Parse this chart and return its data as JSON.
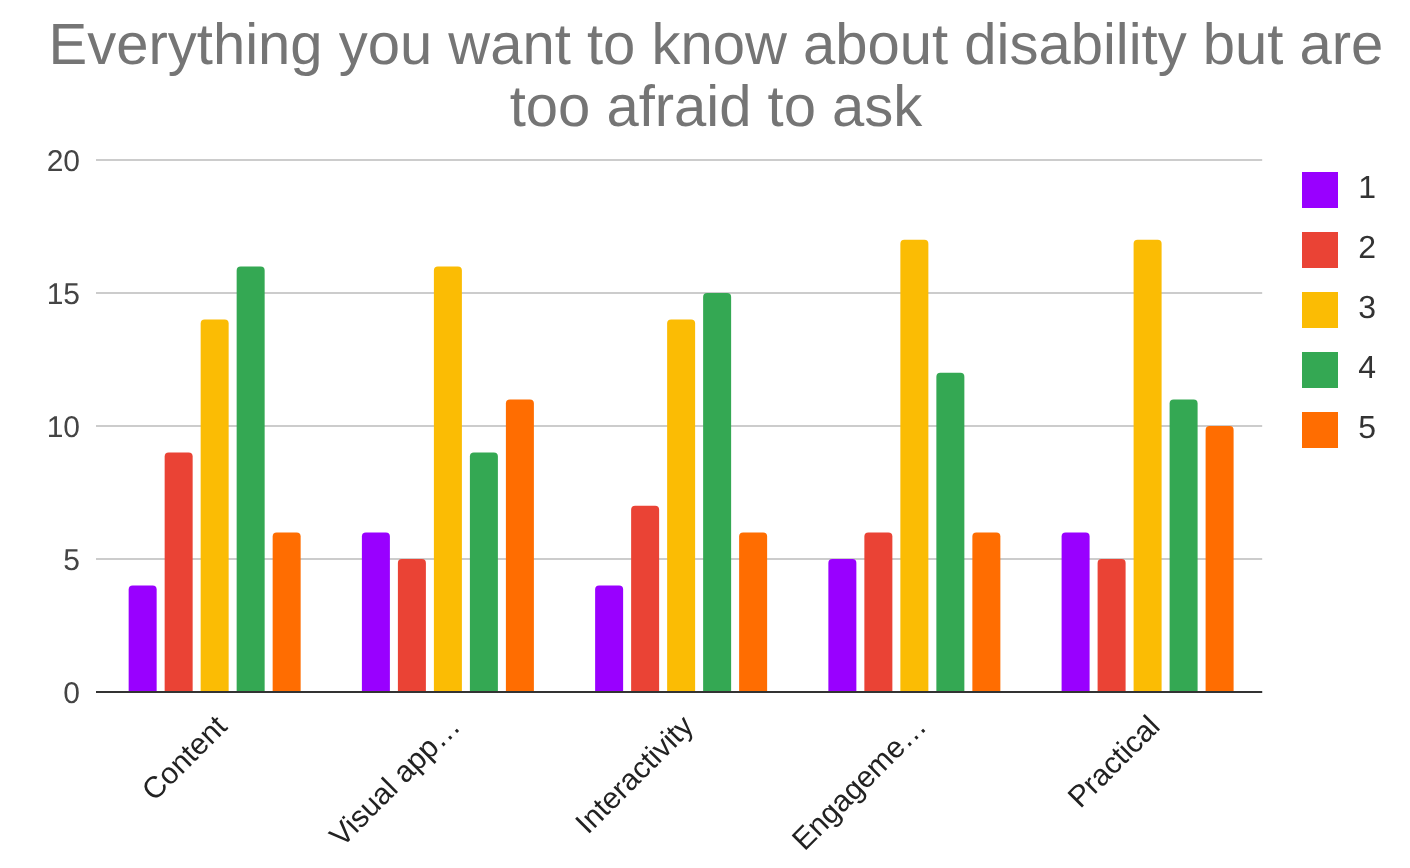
{
  "chart_data": {
    "type": "bar",
    "title": "Everything you want to know about disability but are too afraid to ask",
    "categories": [
      "Content",
      "Visual app…",
      "Interactivity",
      "Engageme…",
      "Practical"
    ],
    "series": [
      {
        "name": "1",
        "color": "#9900ff",
        "values": [
          4,
          6,
          4,
          5,
          6
        ]
      },
      {
        "name": "2",
        "color": "#ea4335",
        "values": [
          9,
          5,
          7,
          6,
          5
        ]
      },
      {
        "name": "3",
        "color": "#fbbc04",
        "values": [
          14,
          16,
          14,
          17,
          17
        ]
      },
      {
        "name": "4",
        "color": "#34a853",
        "values": [
          16,
          9,
          15,
          12,
          11
        ]
      },
      {
        "name": "5",
        "color": "#ff6d01",
        "values": [
          6,
          11,
          6,
          6,
          10
        ]
      }
    ],
    "ylim": [
      0,
      20
    ],
    "yticks": [
      0,
      5,
      10,
      15,
      20
    ],
    "grid": "y",
    "legend": "right"
  }
}
